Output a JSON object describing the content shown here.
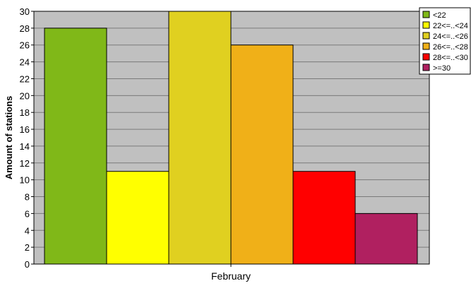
{
  "chart_data": {
    "type": "bar",
    "categories": [
      "February"
    ],
    "series": [
      {
        "name": "<22",
        "values": [
          28
        ],
        "color": "#80b818"
      },
      {
        "name": "22<=..<24",
        "values": [
          11
        ],
        "color": "#ffff00"
      },
      {
        "name": "24<=..<26",
        "values": [
          30
        ],
        "color": "#e0d020"
      },
      {
        "name": "26<=..<28",
        "values": [
          26
        ],
        "color": "#f0b018"
      },
      {
        "name": "28<=..<30",
        "values": [
          11
        ],
        "color": "#ff0000"
      },
      {
        "name": ">=30",
        "values": [
          6
        ],
        "color": "#b02060"
      }
    ],
    "ylabel": "Amount of stations",
    "xlabel": "",
    "ylim": [
      0,
      30
    ],
    "yticks": [
      0,
      2,
      4,
      6,
      8,
      10,
      12,
      14,
      16,
      18,
      20,
      22,
      24,
      26,
      28,
      30
    ],
    "grid": true,
    "plot_background": "#c0c0c0",
    "legend_position": "top-right"
  }
}
